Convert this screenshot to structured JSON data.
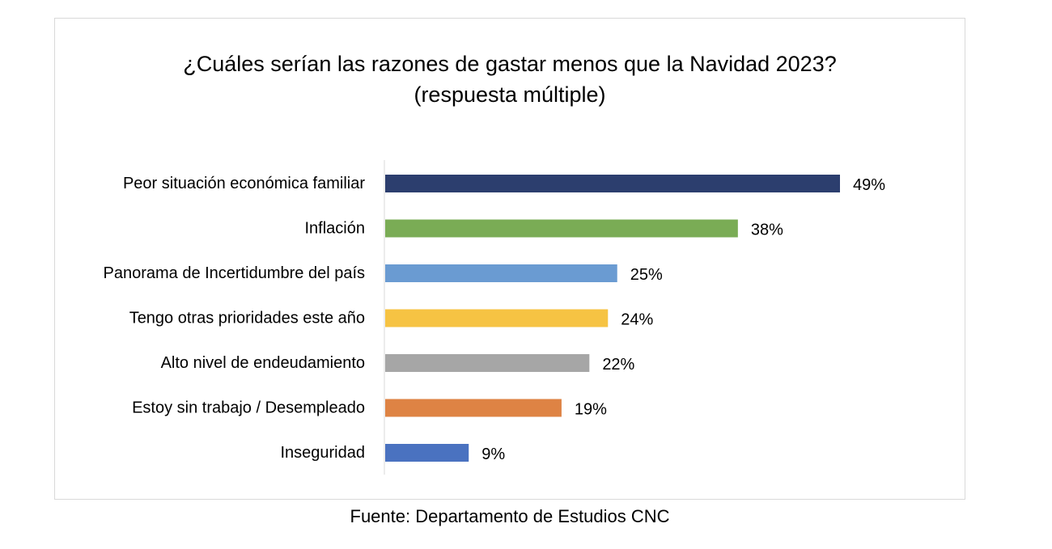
{
  "chart_data": {
    "type": "bar",
    "orientation": "horizontal",
    "title": "¿Cuáles serían las razones de gastar menos que la Navidad 2023?",
    "subtitle": "(respuesta múltiple)",
    "categories": [
      "Peor situación económica familiar",
      "Inflación",
      "Panorama de Incertidumbre del país",
      "Tengo otras prioridades este año",
      "Alto nivel de endeudamiento",
      "Estoy sin trabajo / Desempleado",
      "Inseguridad"
    ],
    "values": [
      49,
      38,
      25,
      24,
      22,
      19,
      9
    ],
    "value_labels": [
      "49%",
      "38%",
      "25%",
      "24%",
      "22%",
      "19%",
      "9%"
    ],
    "colors": [
      "#2c3e6e",
      "#7aac55",
      "#6a9bd2",
      "#f6c343",
      "#a6a6a6",
      "#de8344",
      "#4a72c0"
    ],
    "unit": "%",
    "xlim": [
      0,
      50
    ],
    "grid": false,
    "legend": "none"
  },
  "source": "Fuente: Departamento de Estudios CNC"
}
